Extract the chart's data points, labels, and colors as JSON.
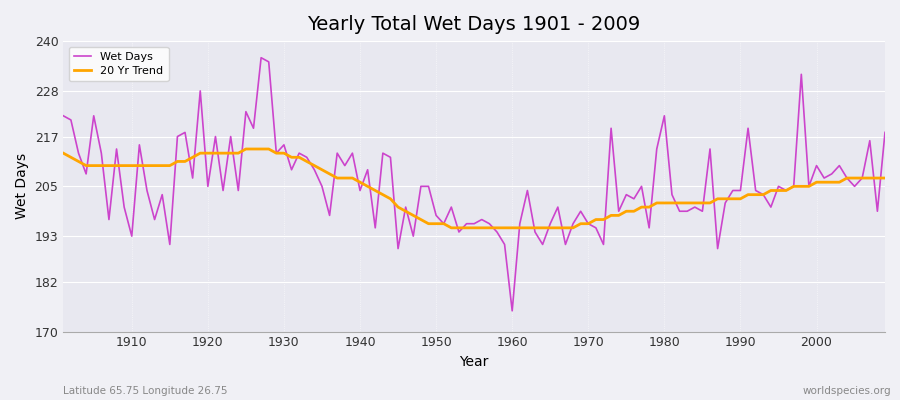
{
  "title": "Yearly Total Wet Days 1901 - 2009",
  "xlabel": "Year",
  "ylabel": "Wet Days",
  "subtitle": "Latitude 65.75 Longitude 26.75",
  "watermark": "worldspecies.org",
  "ylim": [
    170,
    240
  ],
  "yticks": [
    170,
    182,
    193,
    205,
    217,
    228,
    240
  ],
  "line_color": "#cc44cc",
  "trend_color": "#FFA500",
  "bg_color": "#f0f0f5",
  "plot_bg_color": "#e8e8f0",
  "years": [
    1901,
    1902,
    1903,
    1904,
    1905,
    1906,
    1907,
    1908,
    1909,
    1910,
    1911,
    1912,
    1913,
    1914,
    1915,
    1916,
    1917,
    1918,
    1919,
    1920,
    1921,
    1922,
    1923,
    1924,
    1925,
    1926,
    1927,
    1928,
    1929,
    1930,
    1931,
    1932,
    1933,
    1934,
    1935,
    1936,
    1937,
    1938,
    1939,
    1940,
    1941,
    1942,
    1943,
    1944,
    1945,
    1946,
    1947,
    1948,
    1949,
    1950,
    1951,
    1952,
    1953,
    1954,
    1955,
    1956,
    1957,
    1958,
    1959,
    1960,
    1961,
    1962,
    1963,
    1964,
    1965,
    1966,
    1967,
    1968,
    1969,
    1970,
    1971,
    1972,
    1973,
    1974,
    1975,
    1976,
    1977,
    1978,
    1979,
    1980,
    1981,
    1982,
    1983,
    1984,
    1985,
    1986,
    1987,
    1988,
    1989,
    1990,
    1991,
    1992,
    1993,
    1994,
    1995,
    1996,
    1997,
    1998,
    1999,
    2000,
    2001,
    2002,
    2003,
    2004,
    2005,
    2006,
    2007,
    2008,
    2009
  ],
  "wet_days": [
    222,
    221,
    213,
    208,
    222,
    213,
    197,
    214,
    200,
    193,
    215,
    204,
    197,
    203,
    191,
    217,
    218,
    207,
    228,
    205,
    217,
    204,
    217,
    204,
    223,
    219,
    236,
    235,
    213,
    215,
    209,
    213,
    212,
    209,
    205,
    198,
    213,
    210,
    213,
    204,
    209,
    195,
    213,
    212,
    190,
    200,
    193,
    205,
    205,
    198,
    196,
    200,
    194,
    196,
    196,
    197,
    196,
    194,
    191,
    175,
    196,
    204,
    194,
    191,
    196,
    200,
    191,
    196,
    199,
    196,
    195,
    191,
    219,
    199,
    203,
    202,
    205,
    195,
    214,
    222,
    203,
    199,
    199,
    200,
    199,
    214,
    190,
    201,
    204,
    204,
    219,
    204,
    203,
    200,
    205,
    204,
    205,
    232,
    205,
    210,
    207,
    208,
    210,
    207,
    205,
    207,
    216,
    199,
    218
  ],
  "trend": [
    213,
    212,
    211,
    210,
    210,
    210,
    210,
    210,
    210,
    210,
    210,
    210,
    210,
    210,
    210,
    211,
    211,
    212,
    213,
    213,
    213,
    213,
    213,
    213,
    214,
    214,
    214,
    214,
    213,
    213,
    212,
    212,
    211,
    210,
    209,
    208,
    207,
    207,
    207,
    206,
    205,
    204,
    203,
    202,
    200,
    199,
    198,
    197,
    196,
    196,
    196,
    195,
    195,
    195,
    195,
    195,
    195,
    195,
    195,
    195,
    195,
    195,
    195,
    195,
    195,
    195,
    195,
    195,
    196,
    196,
    197,
    197,
    198,
    198,
    199,
    199,
    200,
    200,
    201,
    201,
    201,
    201,
    201,
    201,
    201,
    201,
    202,
    202,
    202,
    202,
    203,
    203,
    203,
    204,
    204,
    204,
    205,
    205,
    205,
    206,
    206,
    206,
    206,
    207,
    207,
    207,
    207,
    207,
    207
  ]
}
